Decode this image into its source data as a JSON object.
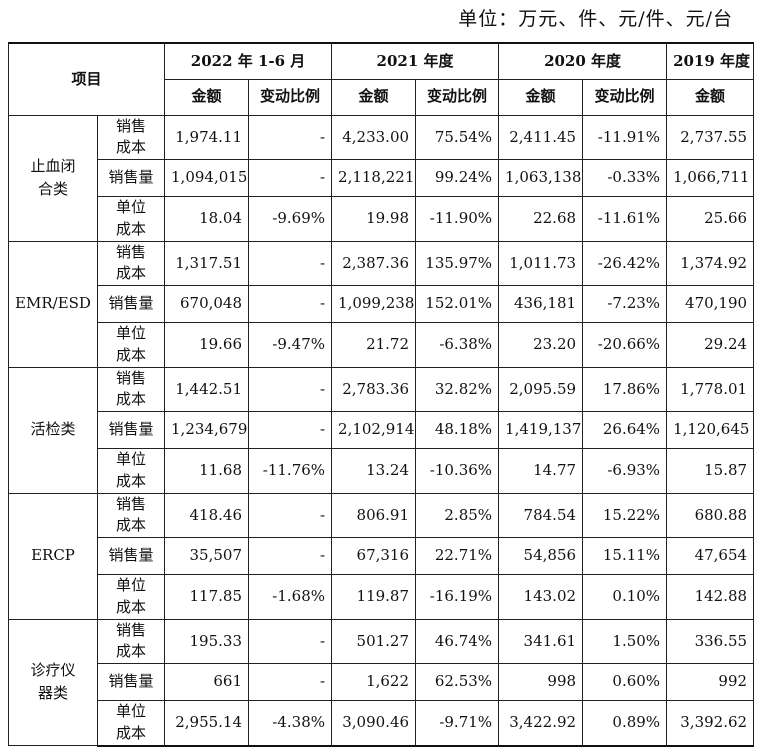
{
  "unit_label": "单位：万元、件、元/件、元/台",
  "header": {
    "item": "项目",
    "periods": [
      "2022 年 1-6 月",
      "2021 年度",
      "2020 年度",
      "2019 年度"
    ],
    "amount": "金额",
    "change": "变动比例"
  },
  "groups": [
    {
      "name": "止血闭合类",
      "rows": [
        {
          "label": "销售成本",
          "values": [
            "1,974.11",
            "-",
            "4,233.00",
            "75.54%",
            "2,411.45",
            "-11.91%",
            "2,737.55"
          ]
        },
        {
          "label": "销售量",
          "values": [
            "1,094,015",
            "-",
            "2,118,221",
            "99.24%",
            "1,063,138",
            "-0.33%",
            "1,066,711"
          ]
        },
        {
          "label": "单位成本",
          "values": [
            "18.04",
            "-9.69%",
            "19.98",
            "-11.90%",
            "22.68",
            "-11.61%",
            "25.66"
          ]
        }
      ]
    },
    {
      "name": "EMR/ESD",
      "rows": [
        {
          "label": "销售成本",
          "values": [
            "1,317.51",
            "-",
            "2,387.36",
            "135.97%",
            "1,011.73",
            "-26.42%",
            "1,374.92"
          ]
        },
        {
          "label": "销售量",
          "values": [
            "670,048",
            "-",
            "1,099,238",
            "152.01%",
            "436,181",
            "-7.23%",
            "470,190"
          ]
        },
        {
          "label": "单位成本",
          "values": [
            "19.66",
            "-9.47%",
            "21.72",
            "-6.38%",
            "23.20",
            "-20.66%",
            "29.24"
          ]
        }
      ]
    },
    {
      "name": "活检类",
      "rows": [
        {
          "label": "销售成本",
          "values": [
            "1,442.51",
            "-",
            "2,783.36",
            "32.82%",
            "2,095.59",
            "17.86%",
            "1,778.01"
          ]
        },
        {
          "label": "销售量",
          "values": [
            "1,234,679",
            "-",
            "2,102,914",
            "48.18%",
            "1,419,137",
            "26.64%",
            "1,120,645"
          ]
        },
        {
          "label": "单位成本",
          "values": [
            "11.68",
            "-11.76%",
            "13.24",
            "-10.36%",
            "14.77",
            "-6.93%",
            "15.87"
          ]
        }
      ]
    },
    {
      "name": "ERCP",
      "rows": [
        {
          "label": "销售成本",
          "values": [
            "418.46",
            "-",
            "806.91",
            "2.85%",
            "784.54",
            "15.22%",
            "680.88"
          ]
        },
        {
          "label": "销售量",
          "values": [
            "35,507",
            "-",
            "67,316",
            "22.71%",
            "54,856",
            "15.11%",
            "47,654"
          ]
        },
        {
          "label": "单位成本",
          "values": [
            "117.85",
            "-1.68%",
            "119.87",
            "-16.19%",
            "143.02",
            "0.10%",
            "142.88"
          ]
        }
      ]
    },
    {
      "name": "诊疗仪器类",
      "rows": [
        {
          "label": "销售成本",
          "values": [
            "195.33",
            "-",
            "501.27",
            "46.74%",
            "341.61",
            "1.50%",
            "336.55"
          ]
        },
        {
          "label": "销售量",
          "values": [
            "661",
            "-",
            "1,622",
            "62.53%",
            "998",
            "0.60%",
            "992"
          ]
        },
        {
          "label": "单位成本",
          "values": [
            "2,955.14",
            "-4.38%",
            "3,090.46",
            "-9.71%",
            "3,422.92",
            "0.89%",
            "3,392.62"
          ]
        }
      ]
    }
  ]
}
